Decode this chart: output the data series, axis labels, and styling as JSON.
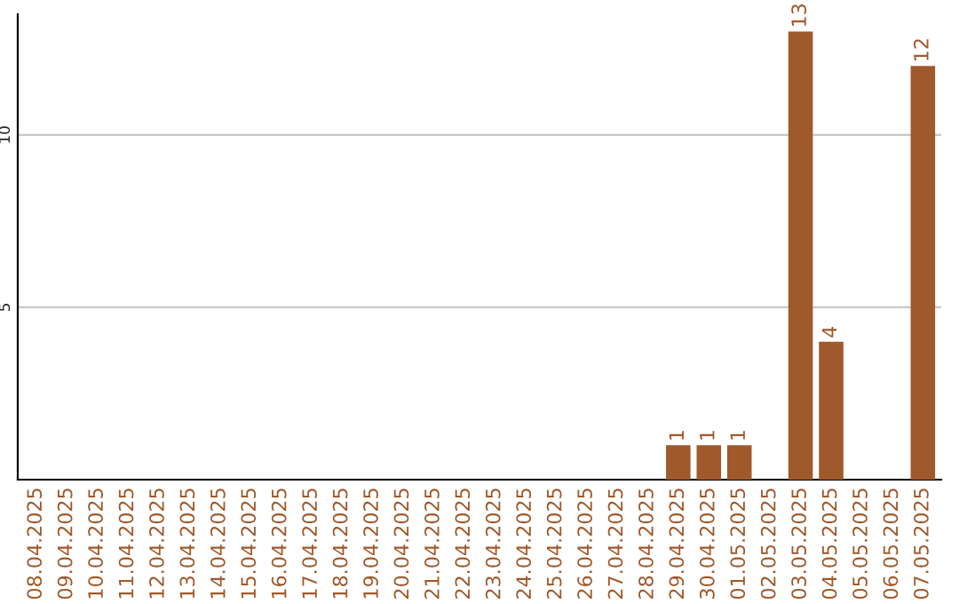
{
  "chart_data": {
    "type": "bar",
    "categories": [
      "08.04.2025",
      "09.04.2025",
      "10.04.2025",
      "11.04.2025",
      "12.04.2025",
      "13.04.2025",
      "14.04.2025",
      "15.04.2025",
      "16.04.2025",
      "17.04.2025",
      "18.04.2025",
      "19.04.2025",
      "20.04.2025",
      "21.04.2025",
      "22.04.2025",
      "23.04.2025",
      "24.04.2025",
      "25.04.2025",
      "26.04.2025",
      "27.04.2025",
      "28.04.2025",
      "29.04.2025",
      "30.04.2025",
      "01.05.2025",
      "02.05.2025",
      "03.05.2025",
      "04.05.2025",
      "05.05.2025",
      "06.05.2025",
      "07.05.2025"
    ],
    "values": [
      0,
      0,
      0,
      0,
      0,
      0,
      0,
      0,
      0,
      0,
      0,
      0,
      0,
      0,
      0,
      0,
      0,
      0,
      0,
      0,
      0,
      1,
      1,
      1,
      0,
      13,
      4,
      0,
      0,
      12
    ],
    "value_labels": [
      null,
      null,
      null,
      null,
      null,
      null,
      null,
      null,
      null,
      null,
      null,
      null,
      null,
      null,
      null,
      null,
      null,
      null,
      null,
      null,
      null,
      "1",
      "1",
      "1",
      null,
      "13",
      "4",
      null,
      null,
      "12"
    ],
    "color": "#a0592a",
    "ylim": [
      0,
      13.5
    ],
    "yticks": [
      5,
      10
    ],
    "grid": "y",
    "legend": false
  }
}
